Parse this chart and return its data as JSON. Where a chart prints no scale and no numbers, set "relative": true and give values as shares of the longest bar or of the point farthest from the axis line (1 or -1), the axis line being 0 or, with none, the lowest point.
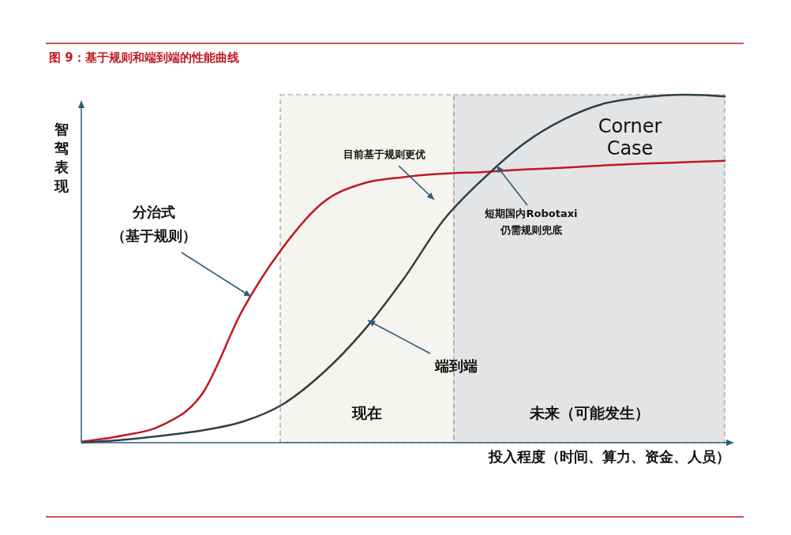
{
  "chart_data": {
    "type": "line",
    "relative": true,
    "title": "图 9：基于规则和端到端的性能曲线",
    "xlabel": "投入程度（时间、算力、资金、人员）",
    "ylabel": "智驾表现",
    "categories": [
      null,
      null,
      null,
      null,
      null,
      null,
      null,
      null,
      null,
      null,
      null,
      null,
      null,
      null,
      null,
      null,
      null
    ],
    "series": [
      {
        "color": "#c0191e",
        "values": [
          0.003,
          0.02,
          0.05,
          0.14,
          0.38,
          0.56,
          0.69,
          0.745,
          0.763,
          0.773,
          0.778,
          0.785,
          0.79,
          0.797,
          0.802,
          0.806,
          0.81
        ]
      },
      {
        "color": "#2f3f48",
        "values": [
          0,
          0.008,
          0.02,
          0.035,
          0.06,
          0.11,
          0.2,
          0.32,
          0.47,
          0.64,
          0.76,
          0.86,
          0.93,
          0.975,
          0.993,
          1.0,
          0.995
        ]
      }
    ],
    "annotations": [
      "分治式（基于规则）",
      "端到端",
      "目前基于规则更优",
      "短期国内Robotaxi仍需规则兜底",
      "Corner Case",
      "现在",
      "未来（可能发生）"
    ],
    "line_style": "solid",
    "marker": "none"
  }
}
